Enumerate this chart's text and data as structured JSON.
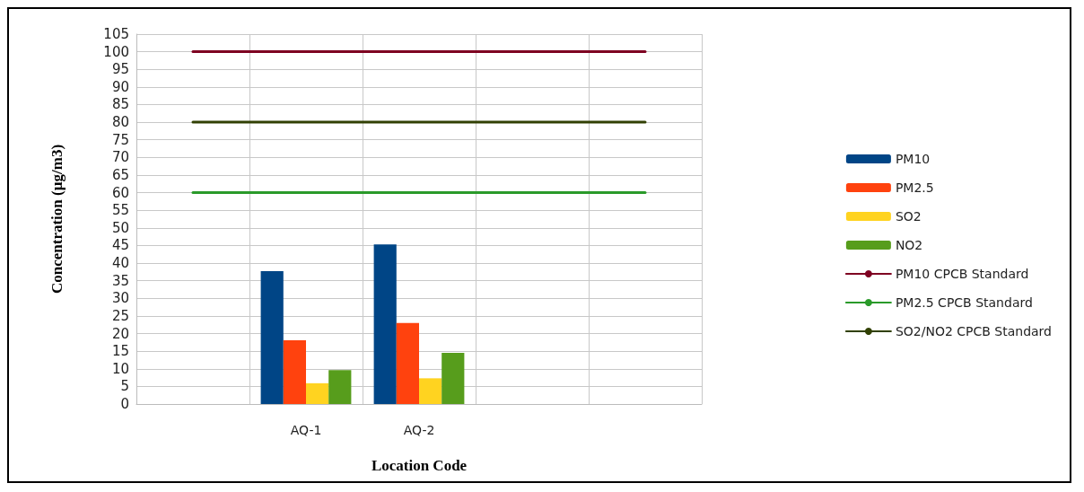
{
  "chart_data": {
    "type": "bar",
    "xlabel": "Location Code",
    "ylabel": "Concentration (µg/m3)",
    "categories": [
      null,
      "AQ-1",
      "AQ-2",
      null,
      null
    ],
    "ylim": [
      0,
      105
    ],
    "yticks": [
      0,
      5,
      10,
      15,
      20,
      25,
      30,
      35,
      40,
      45,
      50,
      55,
      60,
      65,
      70,
      75,
      80,
      85,
      90,
      95,
      100,
      105
    ],
    "grid": true,
    "legend": "right",
    "marker": "none",
    "series": [
      {
        "name": "PM10",
        "color": "#004586",
        "values": [
          null,
          37.7,
          45.3,
          null,
          null
        ]
      },
      {
        "name": "PM2.5",
        "color": "#ff420e",
        "values": [
          null,
          18.1,
          23.0,
          null,
          null
        ]
      },
      {
        "name": "SO2",
        "color": "#ffd320",
        "values": [
          null,
          5.9,
          7.3,
          null,
          null
        ]
      },
      {
        "name": "NO2",
        "color": "#579d1c",
        "values": [
          null,
          9.6,
          14.5,
          null,
          null
        ]
      },
      {
        "name": "PM10 CPCB Standard",
        "type": "line",
        "color": "#7e0021",
        "values": [
          100,
          100,
          100,
          100,
          100
        ]
      },
      {
        "name": "PM2.5 CPCB Standard",
        "type": "line",
        "color": "#2a9a2a",
        "values": [
          60,
          60,
          60,
          60,
          60
        ]
      },
      {
        "name": "SO2/NO2 CPCB Standard",
        "type": "line",
        "color": "#314004",
        "values": [
          80,
          80,
          80,
          80,
          80
        ]
      }
    ]
  }
}
